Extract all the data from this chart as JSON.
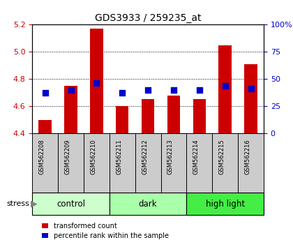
{
  "title": "GDS3933 / 259235_at",
  "samples": [
    "GSM562208",
    "GSM562209",
    "GSM562210",
    "GSM562211",
    "GSM562212",
    "GSM562213",
    "GSM562214",
    "GSM562215",
    "GSM562216"
  ],
  "red_values": [
    4.5,
    4.75,
    5.17,
    4.6,
    4.65,
    4.68,
    4.65,
    5.05,
    4.91
  ],
  "blue_values": [
    4.7,
    4.72,
    4.77,
    4.7,
    4.72,
    4.72,
    4.72,
    4.75,
    4.73
  ],
  "ylim_left": [
    4.4,
    5.2
  ],
  "ylim_right": [
    0,
    100
  ],
  "yticks_left": [
    4.4,
    4.6,
    4.8,
    5.0,
    5.2
  ],
  "yticks_right": [
    0,
    25,
    50,
    75,
    100
  ],
  "ytick_labels_right": [
    "0",
    "25",
    "50",
    "75",
    "100%"
  ],
  "groups": [
    {
      "label": "control",
      "indices": [
        0,
        1,
        2
      ],
      "color": "#ccffcc"
    },
    {
      "label": "dark",
      "indices": [
        3,
        4,
        5
      ],
      "color": "#aaffaa"
    },
    {
      "label": "high light",
      "indices": [
        6,
        7,
        8
      ],
      "color": "#44ee44"
    }
  ],
  "bar_color": "#cc0000",
  "dot_color": "#0000cc",
  "bar_baseline": 4.4,
  "bar_width": 0.5,
  "dot_size": 35,
  "tick_label_color_left": "#cc0000",
  "tick_label_color_right": "#0000cc",
  "sample_box_color": "#cccccc",
  "legend_red_label": "transformed count",
  "legend_blue_label": "percentile rank within the sample",
  "stress_label": "stress"
}
